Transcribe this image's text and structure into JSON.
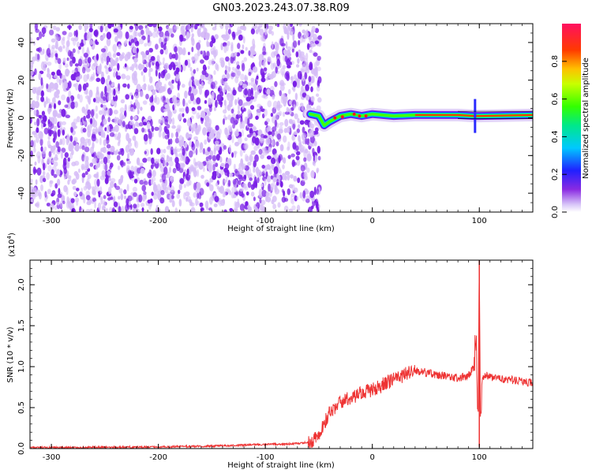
{
  "title": "GN03.2023.243.07.38.R09",
  "colors": {
    "snr_line": "#ee3333",
    "scatter": "#7a1fe6",
    "scatter_light": "#d6bdf7",
    "axis": "#000000"
  },
  "chart_data": [
    {
      "type": "heatmap",
      "xlabel": "Height of straight line (km)",
      "ylabel": "Frequency (Hz)",
      "xlim": [
        -320,
        150
      ],
      "ylim": [
        -50,
        50
      ],
      "x_ticks": [
        -300,
        -200,
        -100,
        0,
        100
      ],
      "y_ticks": [
        -40,
        -20,
        0,
        20,
        40
      ],
      "noise_region_x": [
        -320,
        -52
      ],
      "signal_track": [
        {
          "x": -58,
          "y": 2
        },
        {
          "x": -50,
          "y": 1
        },
        {
          "x": -45,
          "y": -4
        },
        {
          "x": -40,
          "y": -2
        },
        {
          "x": -30,
          "y": 1
        },
        {
          "x": -20,
          "y": 2
        },
        {
          "x": -10,
          "y": 1
        },
        {
          "x": 0,
          "y": 2
        },
        {
          "x": 20,
          "y": 1
        },
        {
          "x": 40,
          "y": 1.5
        },
        {
          "x": 80,
          "y": 1.5
        },
        {
          "x": 95,
          "y": 1
        },
        {
          "x": 100,
          "y": 1
        },
        {
          "x": 150,
          "y": 1.5
        }
      ],
      "colorbar": {
        "label": "Normalized spectral amplitude",
        "ticks": [
          "0.0",
          "0.2",
          "0.4",
          "0.6",
          "0.8"
        ],
        "tick_values": [
          0.0,
          0.2,
          0.4,
          0.6,
          0.8
        ],
        "range": [
          0,
          1
        ]
      }
    },
    {
      "type": "line",
      "xlabel": "Height of straight line (km)",
      "ylabel": "SNR (10 * v/v)",
      "y_multiplier": "(x10",
      "y_multiplier_exp": "4",
      "xlim": [
        -320,
        150
      ],
      "ylim": [
        0,
        2.3
      ],
      "x_ticks": [
        -300,
        -200,
        -100,
        0,
        100
      ],
      "y_ticks": [
        0.0,
        0.5,
        1.0,
        1.5,
        2.0
      ],
      "y_tick_labels": [
        "0.0",
        "0.5",
        "1.0",
        "1.5",
        "2.0"
      ],
      "series": [
        {
          "x": [
            -320,
            -250,
            -200,
            -150,
            -100,
            -70,
            -60,
            -55,
            -50,
            -45,
            -40,
            -35,
            -30,
            -25,
            -20,
            -15,
            -10,
            -5,
            0,
            5,
            10,
            20,
            30,
            40,
            50,
            60,
            70,
            80,
            85,
            90,
            95,
            97,
            99,
            100,
            101,
            103,
            105,
            110,
            120,
            130,
            140,
            150
          ],
          "y": [
            0.01,
            0.015,
            0.02,
            0.03,
            0.05,
            0.06,
            0.08,
            0.1,
            0.18,
            0.3,
            0.45,
            0.5,
            0.55,
            0.6,
            0.62,
            0.65,
            0.68,
            0.7,
            0.72,
            0.74,
            0.78,
            0.85,
            0.9,
            0.95,
            0.93,
            0.9,
            0.88,
            0.86,
            0.87,
            0.9,
            1.0,
            1.3,
            0.4,
            2.3,
            0.5,
            0.85,
            0.9,
            0.88,
            0.85,
            0.84,
            0.82,
            0.8
          ]
        }
      ]
    }
  ]
}
